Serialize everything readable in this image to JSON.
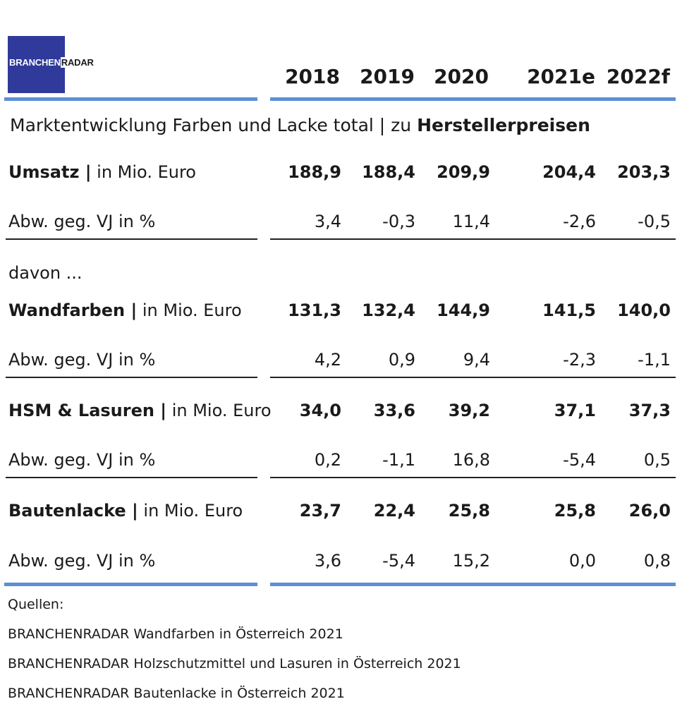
{
  "logo": {
    "part1": "BRANCHEN",
    "part2": "RADAR"
  },
  "columns": [
    "2018",
    "2019",
    "2020",
    "2021e",
    "2022f"
  ],
  "title_regular": "Marktentwicklung Farben und Lacke total | zu ",
  "title_bold": "Herstellerpreisen",
  "davon": "davon ...",
  "rows": [
    {
      "label_bold": "Umsatz |",
      "label_rest": " in Mio. Euro",
      "values": [
        "188,9",
        "188,4",
        "209,9",
        "204,4",
        "203,3"
      ]
    },
    {
      "label": "Abw. geg. VJ in %",
      "values": [
        "3,4",
        "-0,3",
        "11,4",
        "-2,6",
        "-0,5"
      ]
    },
    {
      "label_bold": "Wandfarben |",
      "label_rest": " in Mio. Euro",
      "values": [
        "131,3",
        "132,4",
        "144,9",
        "141,5",
        "140,0"
      ]
    },
    {
      "label": "Abw. geg. VJ in %",
      "values": [
        "4,2",
        "0,9",
        "9,4",
        "-2,3",
        "-1,1"
      ]
    },
    {
      "label_bold": "HSM & Lasuren |",
      "label_rest": " in Mio. Euro",
      "values": [
        "34,0",
        "33,6",
        "39,2",
        "37,1",
        "37,3"
      ]
    },
    {
      "label": "Abw. geg. VJ in %",
      "values": [
        "0,2",
        "-1,1",
        "16,8",
        "-5,4",
        "0,5"
      ]
    },
    {
      "label_bold": "Bautenlacke |",
      "label_rest": " in Mio. Euro",
      "values": [
        "23,7",
        "22,4",
        "25,8",
        "25,8",
        "26,0"
      ]
    },
    {
      "label": "Abw. geg. VJ in %",
      "values": [
        "3,6",
        "-5,4",
        "15,2",
        "0,0",
        "0,8"
      ]
    }
  ],
  "sources": {
    "heading": "Quellen:",
    "items": [
      "BRANCHENRADAR Wandfarben in Österreich 2021",
      "BRANCHENRADAR Holzschutzmittel und Lasuren in Österreich 2021",
      "BRANCHENRADAR Bautenlacke in Österreich 2021"
    ]
  },
  "colors": {
    "accent_line": "#5b8fd6",
    "logo_bg": "#2f3a9b"
  },
  "chart_data": {
    "type": "table",
    "title": "Marktentwicklung Farben und Lacke total | zu Herstellerpreisen",
    "columns": [
      "2018",
      "2019",
      "2020",
      "2021e",
      "2022f"
    ],
    "rows": [
      {
        "name": "Umsatz | in Mio. Euro",
        "values": [
          188.9,
          188.4,
          209.9,
          204.4,
          203.3
        ]
      },
      {
        "name": "Abw. geg. VJ in %",
        "values": [
          3.4,
          -0.3,
          11.4,
          -2.6,
          -0.5
        ]
      },
      {
        "name": "Wandfarben | in Mio. Euro",
        "values": [
          131.3,
          132.4,
          144.9,
          141.5,
          140.0
        ]
      },
      {
        "name": "Abw. geg. VJ in %",
        "values": [
          4.2,
          0.9,
          9.4,
          -2.3,
          -1.1
        ]
      },
      {
        "name": "HSM & Lasuren | in Mio. Euro",
        "values": [
          34.0,
          33.6,
          39.2,
          37.1,
          37.3
        ]
      },
      {
        "name": "Abw. geg. VJ in %",
        "values": [
          0.2,
          -1.1,
          16.8,
          -5.4,
          0.5
        ]
      },
      {
        "name": "Bautenlacke | in Mio. Euro",
        "values": [
          23.7,
          22.4,
          25.8,
          25.8,
          26.0
        ]
      },
      {
        "name": "Abw. geg. VJ in %",
        "values": [
          3.6,
          -5.4,
          15.2,
          0.0,
          0.8
        ]
      }
    ]
  }
}
